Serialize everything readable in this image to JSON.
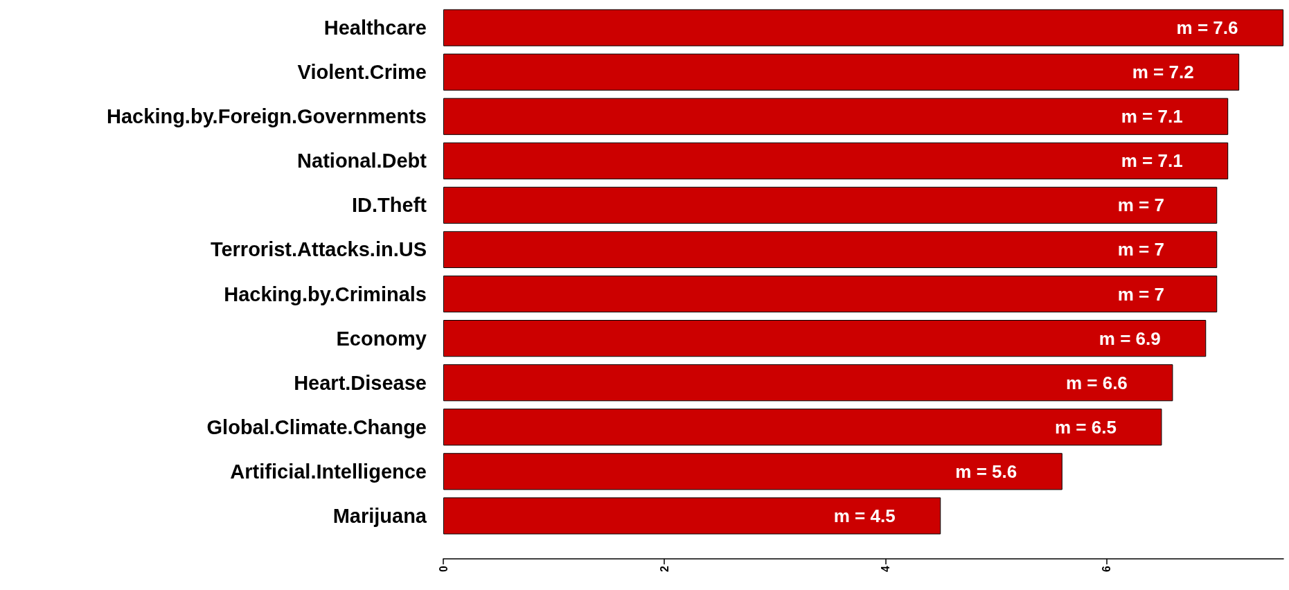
{
  "chart_data": {
    "type": "bar",
    "orientation": "horizontal",
    "categories": [
      "Healthcare",
      "Violent.Crime",
      "Hacking.by.Foreign.Governments",
      "National.Debt",
      "ID.Theft",
      "Terrorist.Attacks.in.US",
      "Hacking.by.Criminals",
      "Economy",
      "Heart.Disease",
      "Global.Climate.Change",
      "Artificial.Intelligence",
      "Marijuana"
    ],
    "values": [
      7.6,
      7.2,
      7.1,
      7.1,
      7,
      7,
      7,
      6.9,
      6.6,
      6.5,
      5.6,
      4.5
    ],
    "value_labels": [
      "m = 7.6",
      "m = 7.2",
      "m = 7.1",
      "m = 7.1",
      "m = 7",
      "m = 7",
      "m = 7",
      "m = 6.9",
      "m = 6.6",
      "m = 6.5",
      "m = 5.6",
      "m = 4.5"
    ],
    "color": "#cc0000",
    "xlim": [
      0,
      7.6
    ],
    "xticks": [
      0,
      2,
      4,
      6
    ]
  }
}
